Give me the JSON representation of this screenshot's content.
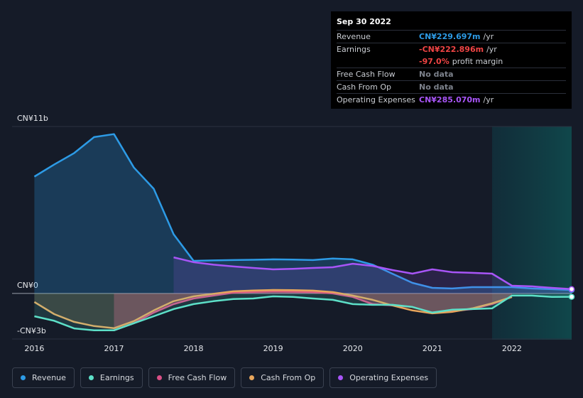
{
  "chart_data": {
    "type": "line",
    "x": [
      2016,
      2016.25,
      2016.5,
      2016.75,
      2017,
      2017.25,
      2017.5,
      2017.75,
      2018,
      2018.25,
      2018.5,
      2018.75,
      2019,
      2019.25,
      2019.5,
      2019.75,
      2020,
      2020.25,
      2020.5,
      2020.75,
      2021,
      2021.25,
      2021.5,
      2021.75,
      2022,
      2022.25,
      2022.5,
      2022.75
    ],
    "series": [
      {
        "name": "Revenue",
        "color": "#2d9be6",
        "values": [
          7.7,
          8.5,
          9.25,
          10.3,
          10.5,
          8.3,
          6.9,
          3.9,
          2.15,
          2.18,
          2.2,
          2.22,
          2.25,
          2.23,
          2.2,
          2.3,
          2.25,
          1.9,
          1.3,
          0.7,
          0.37,
          0.33,
          0.42,
          0.42,
          0.42,
          0.33,
          0.28,
          0.23
        ]
      },
      {
        "name": "Earnings",
        "color": "#5de0c8",
        "values": [
          -1.5,
          -1.8,
          -2.3,
          -2.43,
          -2.43,
          -1.96,
          -1.5,
          -1.03,
          -0.7,
          -0.51,
          -0.37,
          -0.33,
          -0.19,
          -0.23,
          -0.33,
          -0.42,
          -0.7,
          -0.75,
          -0.75,
          -0.89,
          -1.26,
          -1.07,
          -1.03,
          -0.98,
          -0.14,
          -0.14,
          -0.23,
          -0.22
        ]
      },
      {
        "name": "Free Cash Flow",
        "color": "#d94f86",
        "values": [
          null,
          null,
          null,
          null,
          -2.43,
          -1.96,
          -1.26,
          -0.7,
          -0.33,
          -0.14,
          0.05,
          0.1,
          0.14,
          0.12,
          0.09,
          0,
          -0.23,
          -0.7,
          -0.79,
          -0.89,
          -1.26,
          -1.17,
          -1.03,
          -0.7,
          -0.23,
          null,
          null,
          null
        ]
      },
      {
        "name": "Cash From Op",
        "color": "#e8a65c",
        "values": [
          -0.56,
          -1.36,
          -1.87,
          -2.15,
          -2.29,
          -1.82,
          -1.12,
          -0.51,
          -0.19,
          -0.02,
          0.14,
          0.2,
          0.23,
          0.22,
          0.19,
          0.09,
          -0.14,
          -0.42,
          -0.79,
          -1.12,
          -1.31,
          -1.21,
          -0.98,
          -0.65,
          -0.23,
          null,
          null,
          null
        ]
      },
      {
        "name": "Operating Expenses",
        "color": "#a855f7",
        "values": [
          null,
          null,
          null,
          null,
          null,
          null,
          null,
          2.38,
          2.06,
          1.9,
          1.78,
          1.68,
          1.59,
          1.62,
          1.68,
          1.73,
          1.96,
          1.82,
          1.54,
          1.31,
          1.59,
          1.4,
          1.36,
          1.31,
          0.51,
          0.47,
          0.37,
          0.285
        ]
      }
    ],
    "xlim": [
      2015.72,
      2022.75
    ],
    "xticks": [
      2016,
      2017,
      2018,
      2019,
      2020,
      2021,
      2022
    ],
    "ylim": [
      -3,
      11
    ],
    "yticks": [
      {
        "value": -3,
        "label": "-CN¥3b"
      },
      {
        "value": 0,
        "label": "CN¥0"
      },
      {
        "value": 11,
        "label": "CN¥11b"
      }
    ]
  },
  "tooltip": {
    "date": "Sep 30 2022",
    "rows": [
      {
        "label": "Revenue",
        "value": "CN¥229.697m",
        "unit": "/yr",
        "color": "#2d9be6"
      },
      {
        "label": "Earnings",
        "value": "-CN¥222.896m",
        "unit": "/yr",
        "color": "#f04444"
      },
      {
        "label": "",
        "value": "-97.0%",
        "unit": "profit margin",
        "color": "#f04444"
      },
      {
        "label": "Free Cash Flow",
        "value": "No data",
        "unit": "",
        "color": "#7c818b"
      },
      {
        "label": "Cash From Op",
        "value": "No data",
        "unit": "",
        "color": "#7c818b"
      },
      {
        "label": "Operating Expenses",
        "value": "CN¥285.070m",
        "unit": "/yr",
        "color": "#a855f7"
      }
    ]
  }
}
